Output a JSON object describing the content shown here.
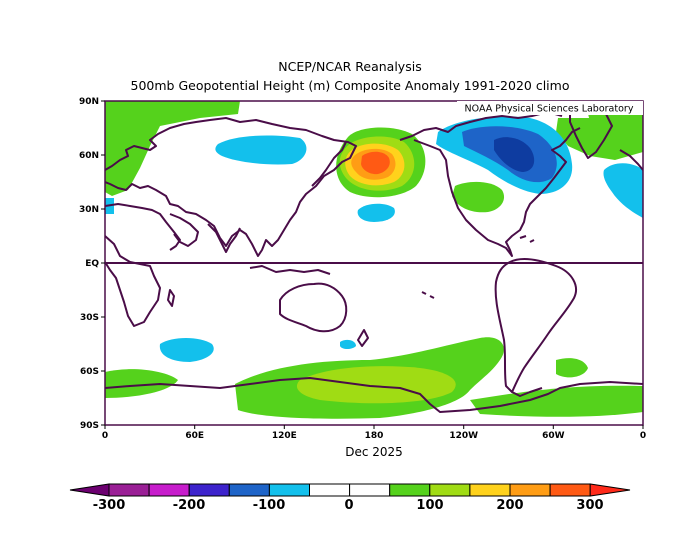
{
  "title_line1": "NCEP/NCAR Reanalysis",
  "title_line2": "500mb Geopotential Height (m) Composite Anomaly 1991-2020 climo",
  "credit": "NOAA Physical Sciences Laboratory",
  "xlabel": "Dec 2025",
  "lat_ticks": [
    "90N",
    "60N",
    "30N",
    "EQ",
    "30S",
    "60S",
    "90S"
  ],
  "lon_ticks": [
    "0",
    "60E",
    "120E",
    "180",
    "120W",
    "60W",
    "0"
  ],
  "colorbar": {
    "colors": [
      "#9a1f96",
      "#c71dcc",
      "#3d23cc",
      "#1e64c8",
      "#13c0ec",
      "#ffffff",
      "#ffffff",
      "#55d21c",
      "#a0dc14",
      "#ffd21c",
      "#ff9d15",
      "#ff5a14"
    ],
    "left_arrow_color": "#6c0070",
    "right_arrow_color": "#ff2a1a",
    "labels": [
      "-300",
      "-200",
      "-100",
      "0",
      "100",
      "200",
      "300"
    ]
  },
  "anomaly_colors": {
    "green": "#55d21c",
    "yellowgreen": "#a0dc14",
    "yellow": "#ffd21c",
    "orange": "#ff9d15",
    "red": "#ff5a14",
    "cyan": "#13c0ec",
    "blue": "#1e64c8",
    "darkblue": "#0e3ca0",
    "coast": "#4a0d48"
  }
}
